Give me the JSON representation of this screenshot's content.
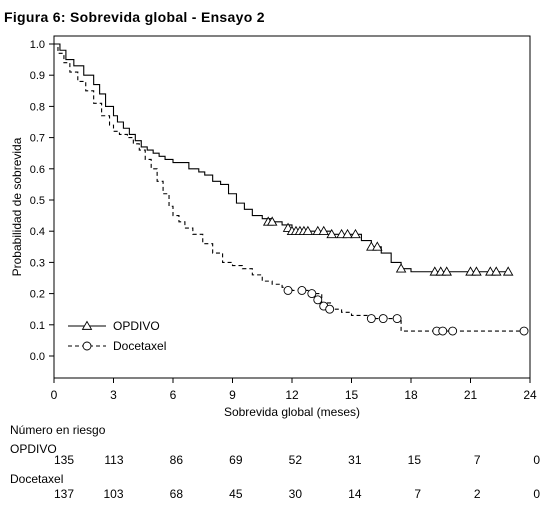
{
  "figure_title": "Figura 6: Sobrevida global - Ensayo 2",
  "chart_data": {
    "type": "line",
    "title": "Figura 6: Sobrevida global - Ensayo 2",
    "xlabel": "Sobrevida global (meses)",
    "ylabel": "Probabilidad de sobrevida",
    "xlim": [
      0,
      24
    ],
    "ylim": [
      0.0,
      1.0
    ],
    "x_ticks": [
      "0",
      "3",
      "6",
      "9",
      "12",
      "15",
      "18",
      "21",
      "24"
    ],
    "y_ticks": [
      "0.0",
      "0.1",
      "0.2",
      "0.3",
      "0.4",
      "0.5",
      "0.6",
      "0.7",
      "0.8",
      "0.9",
      "1.0"
    ],
    "grid": false,
    "legend_position": "bottom-left",
    "series": [
      {
        "name": "OPDIVO",
        "line_style": "solid",
        "marker": "triangle",
        "color": "#000000",
        "x": [
          0,
          0.3,
          0.6,
          1.0,
          1.5,
          2.0,
          2.3,
          2.6,
          3.0,
          3.2,
          3.5,
          3.8,
          4.1,
          4.4,
          4.7,
          5.0,
          5.3,
          5.6,
          6.0,
          6.4,
          6.8,
          7.3,
          7.6,
          8.0,
          8.4,
          8.8,
          9.2,
          9.6,
          10.0,
          10.5,
          11.0,
          11.5,
          12.0,
          12.5,
          13.0,
          14.0,
          15.0,
          15.5,
          16.0,
          16.5,
          17.0,
          17.5,
          18.0,
          19.0,
          20.0,
          21.0,
          22.0,
          23.0
        ],
        "y": [
          1.0,
          0.98,
          0.95,
          0.93,
          0.9,
          0.87,
          0.84,
          0.8,
          0.77,
          0.75,
          0.73,
          0.71,
          0.69,
          0.67,
          0.66,
          0.65,
          0.64,
          0.63,
          0.62,
          0.62,
          0.6,
          0.59,
          0.58,
          0.56,
          0.55,
          0.52,
          0.49,
          0.47,
          0.45,
          0.44,
          0.43,
          0.42,
          0.4,
          0.4,
          0.4,
          0.39,
          0.39,
          0.37,
          0.35,
          0.33,
          0.3,
          0.28,
          0.27,
          0.27,
          0.27,
          0.27,
          0.27,
          0.27
        ],
        "censored": [
          [
            10.8,
            0.43
          ],
          [
            11.0,
            0.43
          ],
          [
            11.8,
            0.41
          ],
          [
            12.0,
            0.4
          ],
          [
            12.2,
            0.4
          ],
          [
            12.4,
            0.4
          ],
          [
            12.6,
            0.4
          ],
          [
            12.8,
            0.4
          ],
          [
            13.3,
            0.4
          ],
          [
            13.6,
            0.4
          ],
          [
            14.0,
            0.39
          ],
          [
            14.5,
            0.39
          ],
          [
            14.8,
            0.39
          ],
          [
            15.2,
            0.39
          ],
          [
            16.0,
            0.35
          ],
          [
            16.3,
            0.35
          ],
          [
            17.5,
            0.28
          ],
          [
            19.2,
            0.27
          ],
          [
            19.5,
            0.27
          ],
          [
            19.8,
            0.27
          ],
          [
            21.0,
            0.27
          ],
          [
            21.3,
            0.27
          ],
          [
            22.0,
            0.27
          ],
          [
            22.3,
            0.27
          ],
          [
            22.9,
            0.27
          ]
        ]
      },
      {
        "name": "Docetaxel",
        "line_style": "dashed",
        "marker": "circle",
        "color": "#000000",
        "x": [
          0,
          0.2,
          0.5,
          0.8,
          1.2,
          1.6,
          2.0,
          2.4,
          2.8,
          3.0,
          3.3,
          3.7,
          4.0,
          4.3,
          4.6,
          4.9,
          5.2,
          5.5,
          5.8,
          6.0,
          6.3,
          6.6,
          7.0,
          7.5,
          8.0,
          8.5,
          9.0,
          9.5,
          10.0,
          10.5,
          11.0,
          11.5,
          12.0,
          12.5,
          13.0,
          13.5,
          14.0,
          14.5,
          15.0,
          16.0,
          17.0,
          17.5,
          18.0,
          20.0,
          22.0,
          24.0
        ],
        "y": [
          1.0,
          0.97,
          0.94,
          0.91,
          0.88,
          0.85,
          0.81,
          0.77,
          0.74,
          0.72,
          0.71,
          0.7,
          0.68,
          0.66,
          0.63,
          0.6,
          0.56,
          0.52,
          0.48,
          0.45,
          0.43,
          0.41,
          0.39,
          0.36,
          0.33,
          0.3,
          0.29,
          0.28,
          0.26,
          0.24,
          0.23,
          0.22,
          0.21,
          0.21,
          0.2,
          0.17,
          0.15,
          0.14,
          0.13,
          0.12,
          0.12,
          0.08,
          0.08,
          0.08,
          0.08,
          0.08
        ],
        "censored": [
          [
            11.8,
            0.21
          ],
          [
            12.5,
            0.21
          ],
          [
            13.0,
            0.2
          ],
          [
            13.3,
            0.18
          ],
          [
            13.6,
            0.16
          ],
          [
            13.9,
            0.15
          ],
          [
            16.0,
            0.12
          ],
          [
            16.6,
            0.12
          ],
          [
            17.3,
            0.12
          ],
          [
            19.3,
            0.08
          ],
          [
            19.6,
            0.08
          ],
          [
            20.1,
            0.08
          ],
          [
            23.7,
            0.08
          ]
        ]
      }
    ]
  },
  "risk_table": {
    "heading": "Número en riesgo",
    "groups": [
      {
        "label": "OPDIVO",
        "values": [
          "135",
          "113",
          "86",
          "69",
          "52",
          "31",
          "15",
          "7",
          "0"
        ]
      },
      {
        "label": "Docetaxel",
        "values": [
          "137",
          "103",
          "68",
          "45",
          "30",
          "14",
          "7",
          "2",
          "0"
        ]
      }
    ]
  }
}
